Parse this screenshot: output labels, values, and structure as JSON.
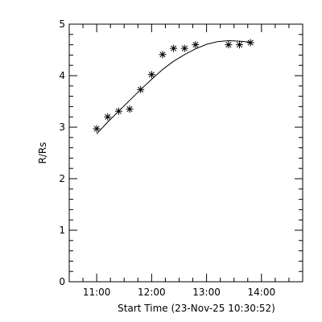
{
  "chart_data": {
    "type": "scatter",
    "xlabel": "Start Time (23-Nov-25 10:30:52)",
    "ylabel": "R/Rs",
    "xlim": [
      "10:30",
      "14:45"
    ],
    "ylim": [
      0,
      5
    ],
    "x_ticks": [
      "11:00",
      "12:00",
      "13:00",
      "14:00"
    ],
    "y_ticks": [
      "0",
      "1",
      "2",
      "3",
      "4",
      "5"
    ],
    "grid": false,
    "legend": "none",
    "series": [
      {
        "marker": "asterisk",
        "points": [
          {
            "x": "11:00",
            "y": 2.97
          },
          {
            "x": "11:12",
            "y": 3.2
          },
          {
            "x": "11:24",
            "y": 3.31
          },
          {
            "x": "11:36",
            "y": 3.35
          },
          {
            "x": "11:48",
            "y": 3.73
          },
          {
            "x": "12:00",
            "y": 4.02
          },
          {
            "x": "12:12",
            "y": 4.41
          },
          {
            "x": "12:24",
            "y": 4.53
          },
          {
            "x": "12:36",
            "y": 4.53
          },
          {
            "x": "12:48",
            "y": 4.6
          },
          {
            "x": "13:24",
            "y": 4.6
          },
          {
            "x": "13:36",
            "y": 4.6
          },
          {
            "x": "13:48",
            "y": 4.64
          }
        ]
      },
      {
        "marker": "none",
        "line": "solid",
        "points": [
          {
            "x": "11:00",
            "y": 2.87
          },
          {
            "x": "11:12",
            "y": 3.1
          },
          {
            "x": "11:24",
            "y": 3.31
          },
          {
            "x": "11:36",
            "y": 3.52
          },
          {
            "x": "11:48",
            "y": 3.73
          },
          {
            "x": "12:00",
            "y": 3.93
          },
          {
            "x": "12:12",
            "y": 4.12
          },
          {
            "x": "12:24",
            "y": 4.28
          },
          {
            "x": "12:36",
            "y": 4.41
          },
          {
            "x": "12:48",
            "y": 4.52
          },
          {
            "x": "13:00",
            "y": 4.61
          },
          {
            "x": "13:12",
            "y": 4.66
          },
          {
            "x": "13:24",
            "y": 4.68
          },
          {
            "x": "13:36",
            "y": 4.67
          },
          {
            "x": "13:48",
            "y": 4.65
          }
        ]
      }
    ]
  }
}
